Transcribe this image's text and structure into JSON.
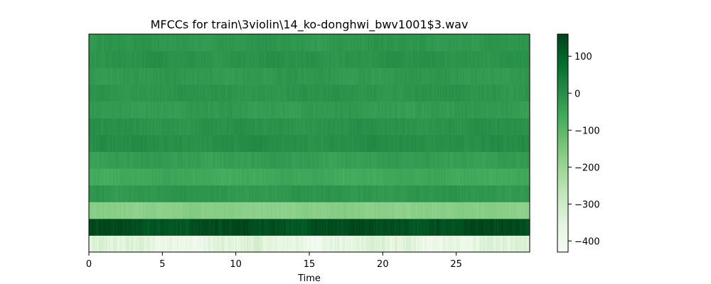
{
  "chart_data": {
    "type": "heatmap",
    "title": "MFCCs for train\\3violin\\14_ko-donghwi_bwv1001$3.wav",
    "xlabel": "Time",
    "ylabel": "",
    "xlim": [
      0,
      30
    ],
    "x_ticks": [
      0,
      5,
      10,
      15,
      20,
      25
    ],
    "x_tick_labels": [
      "0",
      "5",
      "10",
      "15",
      "20",
      "25"
    ],
    "n_coefficients": 13,
    "colormap": "Greens",
    "colorbar": {
      "vmin": -430,
      "vmax": 160,
      "ticks": [
        100,
        0,
        -100,
        -200,
        -300,
        -400
      ],
      "tick_labels": [
        "100",
        "0",
        "−100",
        "−200",
        "−300",
        "−400"
      ]
    },
    "coefficient_mean_values": [
      -360,
      140,
      -170,
      -15,
      -55,
      -30,
      5,
      -5,
      -25,
      -10,
      -20,
      -5,
      -15
    ]
  }
}
